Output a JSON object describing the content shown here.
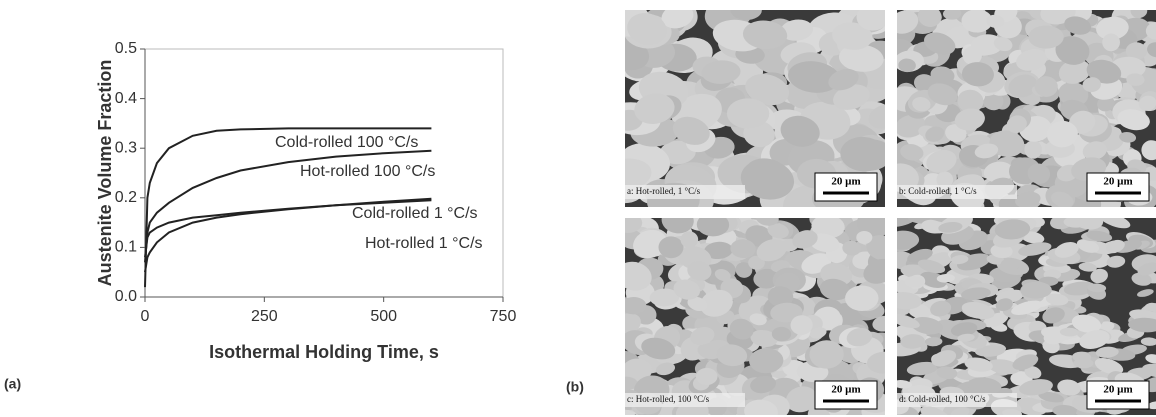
{
  "chart_data": {
    "type": "line",
    "xlabel": "Isothermal Holding Time, s",
    "ylabel": "Austenite Volume Fraction",
    "x": [
      0,
      5,
      10,
      25,
      50,
      100,
      150,
      200,
      300,
      400,
      500,
      600
    ],
    "series": [
      {
        "name": "Cold-rolled 100 °C/s",
        "color": "#222222",
        "values": [
          0.02,
          0.2,
          0.23,
          0.27,
          0.3,
          0.325,
          0.335,
          0.338,
          0.34,
          0.34,
          0.34,
          0.34
        ]
      },
      {
        "name": "Hot-rolled 100 °C/s",
        "color": "#222222",
        "values": [
          0.07,
          0.13,
          0.15,
          0.17,
          0.19,
          0.22,
          0.24,
          0.255,
          0.272,
          0.283,
          0.29,
          0.295
        ]
      },
      {
        "name": "Cold-rolled 1 °C/s",
        "color": "#222222",
        "values": [
          0.08,
          0.12,
          0.13,
          0.14,
          0.15,
          0.16,
          0.165,
          0.17,
          0.178,
          0.185,
          0.19,
          0.195
        ]
      },
      {
        "name": "Hot-rolled 1 °C/s",
        "color": "#222222",
        "values": [
          0.05,
          0.08,
          0.09,
          0.11,
          0.13,
          0.15,
          0.16,
          0.167,
          0.177,
          0.185,
          0.192,
          0.198
        ]
      }
    ],
    "xlim": [
      0,
      750
    ],
    "xticks": [
      0,
      250,
      500,
      750
    ],
    "ylim": [
      0,
      0.5
    ],
    "yticks": [
      {
        "value": 0,
        "label": "0.0"
      },
      0.1,
      0.2,
      0.3,
      0.4,
      0.5
    ]
  },
  "figure": {
    "label_a": "(a)",
    "label_b": "(b)",
    "micrographs": [
      {
        "caption": "a: Hot-rolled, 1 °C/s",
        "scale": "20 µm"
      },
      {
        "caption": "b: Cold-rolled, 1 °C/s",
        "scale": "20 µm"
      },
      {
        "caption": "c: Hot-rolled, 100 °C/s",
        "scale": "20 µm"
      },
      {
        "caption": "d: Cold-rolled, 100 °C/s",
        "scale": "20 µm"
      }
    ]
  }
}
